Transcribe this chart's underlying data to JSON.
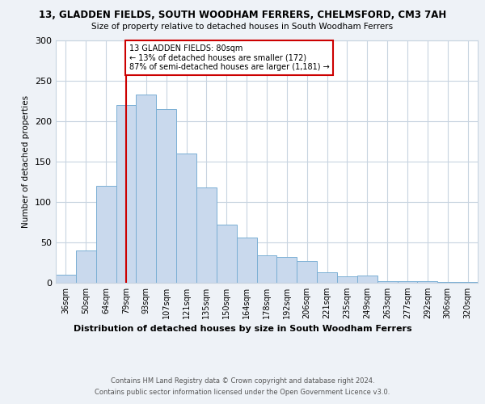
{
  "title_line1": "13, GLADDEN FIELDS, SOUTH WOODHAM FERRERS, CHELMSFORD, CM3 7AH",
  "title_line2": "Size of property relative to detached houses in South Woodham Ferrers",
  "xlabel": "Distribution of detached houses by size in South Woodham Ferrers",
  "ylabel": "Number of detached properties",
  "footer_line1": "Contains HM Land Registry data © Crown copyright and database right 2024.",
  "footer_line2": "Contains public sector information licensed under the Open Government Licence v3.0.",
  "categories": [
    "36sqm",
    "50sqm",
    "64sqm",
    "79sqm",
    "93sqm",
    "107sqm",
    "121sqm",
    "135sqm",
    "150sqm",
    "164sqm",
    "178sqm",
    "192sqm",
    "206sqm",
    "221sqm",
    "235sqm",
    "249sqm",
    "263sqm",
    "277sqm",
    "292sqm",
    "306sqm",
    "320sqm"
  ],
  "values": [
    10,
    40,
    120,
    220,
    233,
    215,
    160,
    118,
    72,
    56,
    34,
    32,
    27,
    13,
    8,
    9,
    2,
    2,
    2,
    1,
    1
  ],
  "bar_color": "#c9d9ed",
  "bar_edge_color": "#7aafd4",
  "annotation_text": "13 GLADDEN FIELDS: 80sqm\n← 13% of detached houses are smaller (172)\n87% of semi-detached houses are larger (1,181) →",
  "vline_color": "#cc0000",
  "annotation_box_color": "#cc0000",
  "vline_index": 3,
  "ylim": [
    0,
    300
  ],
  "yticks": [
    0,
    50,
    100,
    150,
    200,
    250,
    300
  ],
  "background_color": "#eef2f7",
  "plot_background": "#ffffff",
  "grid_color": "#c8d4e0"
}
